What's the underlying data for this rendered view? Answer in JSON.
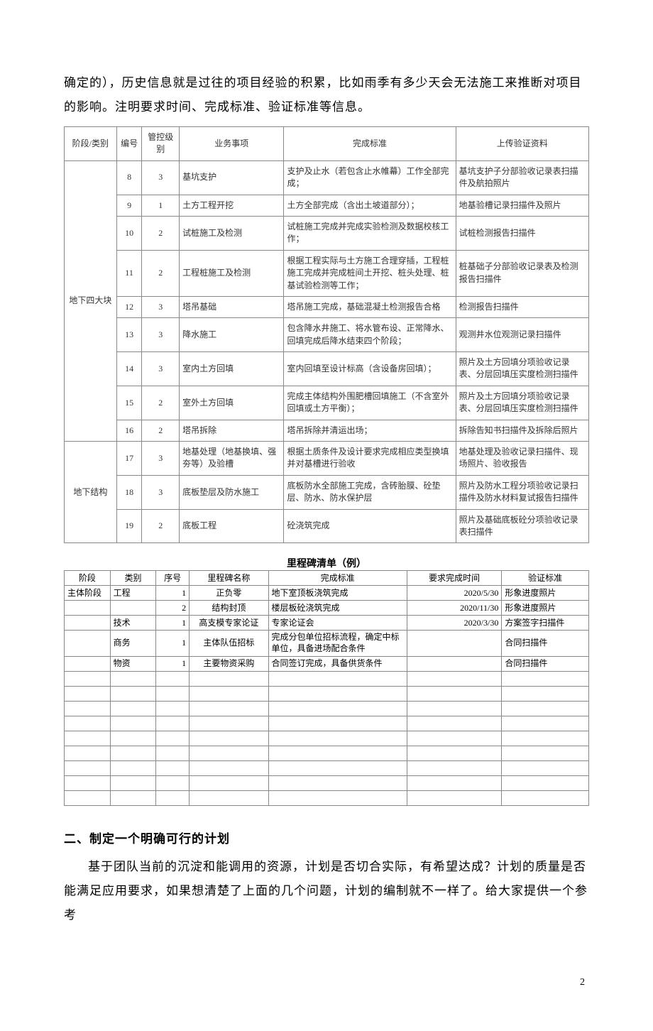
{
  "para1": "确定的），历史信息就是过往的项目经验的积累，比如雨季有多少天会无法施工来推断对项目的影响。注明要求时间、完成标准、验证标准等信息。",
  "table1": {
    "headers": [
      "阶段/类别",
      "编号",
      "管控级别",
      "业务事项",
      "完成标准",
      "上传验证资料"
    ],
    "colwidths": [
      "70",
      "34",
      "50",
      "140",
      "230",
      "178"
    ],
    "groups": [
      {
        "label": "地下四大块",
        "rows": [
          [
            "8",
            "3",
            "基坑支护",
            "支护及止水（若包含止水帷幕）工作全部完成；",
            "基坑支护子分部验收记录表扫描件及航拍照片"
          ],
          [
            "9",
            "1",
            "土方工程开挖",
            "土方全部完成（含出土坡道部分）；",
            "地基验槽记录扫描件及照片"
          ],
          [
            "10",
            "2",
            "试桩施工及检测",
            "试桩施工完成并完成实验检测及数据校核工作；",
            "试桩检测报告扫描件"
          ],
          [
            "11",
            "2",
            "工程桩施工及检测",
            "根据工程实际与土方施工合理穿插，工程桩施工完成并完成桩间土开挖、桩头处理、桩基试验检测等工作；",
            "桩基础子分部验收记录表及检测报告扫描件"
          ],
          [
            "12",
            "3",
            "塔吊基础",
            "塔吊施工完成，基础混凝土检测报告合格",
            "检测报告扫描件"
          ],
          [
            "13",
            "3",
            "降水施工",
            "包含降水井施工、将水管布设、正常降水、回填完成后降水结束四个阶段；",
            "观测井水位观测记录扫描件"
          ],
          [
            "14",
            "3",
            "室内土方回填",
            "室内回填至设计标高（含设备房回填）；",
            "照片及土方回填分项验收记录表、分层回填压实度检测扫描件"
          ],
          [
            "15",
            "2",
            "室外土方回填",
            "完成主体结构外围肥槽回填施工（不含室外回填或土方平衡）；",
            "照片及土方回填分项验收记录表、分层回填压实度检测扫描件"
          ],
          [
            "16",
            "2",
            "塔吊拆除",
            "塔吊拆除并清运出场；",
            "拆除告知书扫描件及拆除后照片"
          ]
        ]
      },
      {
        "label": "地下结构",
        "rows": [
          [
            "17",
            "3",
            "地基处理（地基换填、强夯等）及验槽",
            "根据土质条件及设计要求完成相应类型换填并对基槽进行验收",
            "地基处理及验收记录扫描件、现场照片、验收报告"
          ],
          [
            "18",
            "3",
            "底板垫层及防水施工",
            "底板防水全部施工完成，含砖胎膜、砼垫层、防水、防水保护层",
            "照片及防水工程分项验收记录扫描件及防水材料复试报告扫描件"
          ],
          [
            "19",
            "2",
            "底板工程",
            "砼浇筑完成",
            "照片及基础底板砼分项验收记录表扫描件"
          ]
        ]
      }
    ]
  },
  "table2": {
    "title": "里程碑清单（例）",
    "headers": [
      "阶段",
      "类别",
      "序号",
      "里程碑名称",
      "完成标准",
      "要求完成时间",
      "验证标准"
    ],
    "colwidths": [
      "58",
      "58",
      "42",
      "100",
      "175",
      "120",
      "110"
    ],
    "rows": [
      [
        "主体阶段",
        "工程",
        "1",
        "正负零",
        "地下室顶板浇筑完成",
        "2020/5/30",
        "形象进度照片"
      ],
      [
        "",
        "",
        "2",
        "结构封顶",
        "楼层板砼浇筑完成",
        "2020/11/30",
        "形象进度照片"
      ],
      [
        "",
        "技术",
        "1",
        "高支模专家论证",
        "专家论证会",
        "2020/3/30",
        "方案签字扫描件"
      ],
      [
        "",
        "商务",
        "1",
        "主体队伍招标",
        "完成分包单位招标流程，确定中标单位，具备进场配合条件",
        "",
        "合同扫描件"
      ],
      [
        "",
        "物资",
        "1",
        "主要物资采购",
        "合同签订完成，具备供货条件",
        "",
        "合同扫描件"
      ]
    ],
    "blankRows": 9
  },
  "heading2": "二、制定一个明确可行的计划",
  "para2": "基于团队当前的沉淀和能调用的资源，计划是否切合实际，有希望达成？计划的质量是否能满足应用要求，如果想清楚了上面的几个问题，计划的编制就不一样了。给大家提供一个参考",
  "pageNumber": "2"
}
